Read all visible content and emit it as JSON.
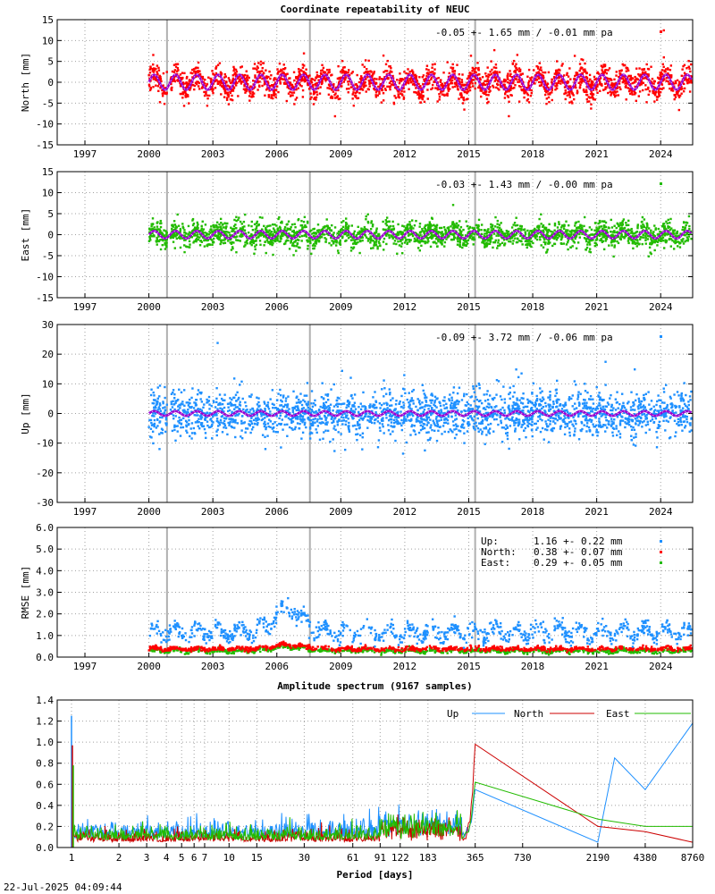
{
  "footer_timestamp": "22-Jul-2025 04:09:44",
  "chart_data": [
    {
      "type": "scatter",
      "title": "Coordinate repeatability of NEUC",
      "ylabel": "North [mm]",
      "ylim": [
        -15,
        15
      ],
      "yticks": [
        15,
        10,
        5,
        0,
        -5,
        -10,
        -15
      ],
      "xlim": [
        1995.7,
        2025.5
      ],
      "xticks": [
        1997,
        2000,
        2003,
        2006,
        2009,
        2012,
        2015,
        2018,
        2021,
        2024
      ],
      "legend": "-0.05 +- 1.65 mm / -0.01 mm pa",
      "color": "#ff0000",
      "scatter_sigma": 1.65,
      "seasonal_amplitude": 1.8,
      "model_color": "#9a00d0"
    },
    {
      "type": "scatter",
      "title": "",
      "ylabel": "East [mm]",
      "ylim": [
        -15,
        15
      ],
      "yticks": [
        15,
        10,
        5,
        0,
        -5,
        -10,
        -15
      ],
      "xlim": [
        1995.7,
        2025.5
      ],
      "xticks": [
        1997,
        2000,
        2003,
        2006,
        2009,
        2012,
        2015,
        2018,
        2021,
        2024
      ],
      "legend": "-0.03 +- 1.43 mm / -0.00 mm pa",
      "color": "#22bb00",
      "scatter_sigma": 1.43,
      "seasonal_amplitude": 0.9,
      "model_color": "#9a00d0"
    },
    {
      "type": "scatter",
      "title": "",
      "ylabel": "Up [mm]",
      "ylim": [
        -30,
        30
      ],
      "yticks": [
        30,
        20,
        10,
        0,
        -10,
        -20,
        -30
      ],
      "xlim": [
        1995.7,
        2025.5
      ],
      "xticks": [
        1997,
        2000,
        2003,
        2006,
        2009,
        2012,
        2015,
        2018,
        2021,
        2024
      ],
      "legend": "-0.09 +- 3.72 mm / -0.06 mm pa",
      "color": "#1e90ff",
      "scatter_sigma": 3.72,
      "seasonal_amplitude": 0.8,
      "model_color": "#9a00d0"
    },
    {
      "type": "scatter",
      "title": "",
      "ylabel": "RMSE [mm]",
      "ylim": [
        0,
        6
      ],
      "yticks": [
        "6.0",
        "5.0",
        "4.0",
        "3.0",
        "2.0",
        "1.0",
        "0.0"
      ],
      "xlim": [
        1995.7,
        2025.5
      ],
      "xticks": [
        1997,
        2000,
        2003,
        2006,
        2009,
        2012,
        2015,
        2018,
        2021,
        2024
      ],
      "legend": [
        {
          "label": "Up:",
          "value": "1.16 +- 0.22 mm",
          "color": "#1e90ff",
          "mean": 1.16
        },
        {
          "label": "North:",
          "value": "0.38 +- 0.07 mm",
          "color": "#ff0000",
          "mean": 0.38
        },
        {
          "label": "East:",
          "value": "0.29 +- 0.05 mm",
          "color": "#22bb00",
          "mean": 0.29
        }
      ]
    },
    {
      "type": "line",
      "title": "Amplitude spectrum (9167 samples)",
      "xlabel": "Period [days]",
      "ylim": [
        0,
        1.4
      ],
      "yticks": [
        "1.4",
        "1.2",
        "1.0",
        "0.8",
        "0.6",
        "0.4",
        "0.2",
        "0.0"
      ],
      "xscale": "log",
      "xticks": [
        1,
        2,
        3,
        4,
        5,
        6,
        7,
        10,
        15,
        30,
        61,
        91,
        122,
        183,
        365,
        730,
        2190,
        4380,
        8760
      ],
      "series": [
        {
          "name": "Up",
          "color": "#1e90ff",
          "peaks": [
            [
              1,
              1.25
            ],
            [
              365,
              0.55
            ],
            [
              2190,
              0.05
            ],
            [
              2800,
              0.85
            ],
            [
              4380,
              0.55
            ],
            [
              8760,
              1.18
            ]
          ]
        },
        {
          "name": "North",
          "color": "#cc0000",
          "peaks": [
            [
              1,
              0.97
            ],
            [
              365,
              0.98
            ],
            [
              2190,
              0.2
            ],
            [
              4380,
              0.15
            ],
            [
              8760,
              0.05
            ]
          ]
        },
        {
          "name": "East",
          "color": "#22bb00",
          "peaks": [
            [
              1,
              0.78
            ],
            [
              365,
              0.62
            ],
            [
              2190,
              0.27
            ],
            [
              4380,
              0.2
            ],
            [
              8760,
              0.2
            ]
          ]
        }
      ]
    }
  ]
}
